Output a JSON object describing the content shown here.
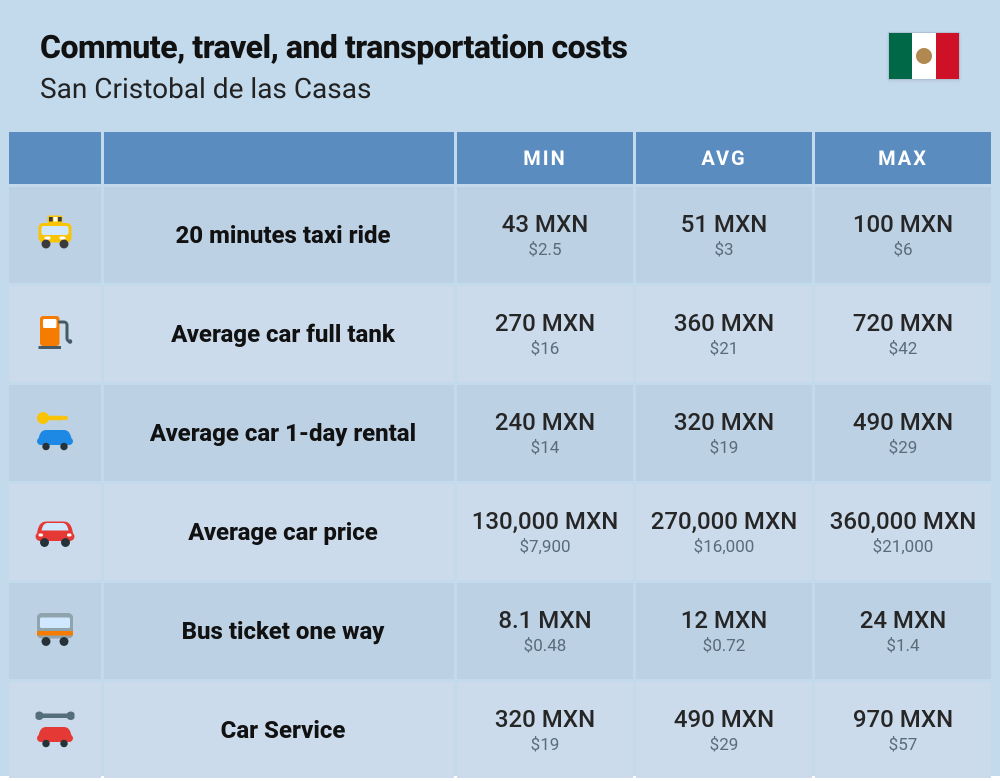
{
  "title": "Commute, travel, and transportation costs",
  "subtitle": "San Cristobal de las Casas",
  "flag": {
    "stripe_colors": [
      "#006847",
      "#ffffff",
      "#ce1126"
    ],
    "emblem_color": "#b08850"
  },
  "colors": {
    "card_bg": "#c3d9ec",
    "title": "#111111",
    "subtitle": "#222222",
    "header_bg": "#5a8cbf",
    "header_fg": "#ffffff",
    "row_odd_bg": "#bdd1e5",
    "row_even_bg": "#cbdbeb",
    "label": "#111111",
    "val_primary": "#262626",
    "val_secondary": "#5a6b7a"
  },
  "columns": {
    "min": "MIN",
    "avg": "AVG",
    "max": "MAX"
  },
  "rows": [
    {
      "icon": "taxi",
      "label": "20 minutes taxi ride",
      "min_mxn": "43 MXN",
      "min_usd": "$2.5",
      "avg_mxn": "51 MXN",
      "avg_usd": "$3",
      "max_mxn": "100 MXN",
      "max_usd": "$6"
    },
    {
      "icon": "fuel",
      "label": "Average car full tank",
      "min_mxn": "270 MXN",
      "min_usd": "$16",
      "avg_mxn": "360 MXN",
      "avg_usd": "$21",
      "max_mxn": "720 MXN",
      "max_usd": "$42"
    },
    {
      "icon": "rental",
      "label": "Average car 1-day rental",
      "min_mxn": "240 MXN",
      "min_usd": "$14",
      "avg_mxn": "320 MXN",
      "avg_usd": "$19",
      "max_mxn": "490 MXN",
      "max_usd": "$29"
    },
    {
      "icon": "car",
      "label": "Average car price",
      "min_mxn": "130,000 MXN",
      "min_usd": "$7,900",
      "avg_mxn": "270,000 MXN",
      "avg_usd": "$16,000",
      "max_mxn": "360,000 MXN",
      "max_usd": "$21,000"
    },
    {
      "icon": "bus",
      "label": "Bus ticket one way",
      "min_mxn": "8.1 MXN",
      "min_usd": "$0.48",
      "avg_mxn": "12 MXN",
      "avg_usd": "$0.72",
      "max_mxn": "24 MXN",
      "max_usd": "$1.4"
    },
    {
      "icon": "service",
      "label": "Car Service",
      "min_mxn": "320 MXN",
      "min_usd": "$19",
      "avg_mxn": "490 MXN",
      "avg_usd": "$29",
      "max_mxn": "970 MXN",
      "max_usd": "$57"
    }
  ],
  "icons": {
    "taxi": {
      "primary": "#f9c406",
      "accent": "#3b3b3b"
    },
    "fuel": {
      "primary": "#f57c00",
      "accent": "#455a64"
    },
    "rental": {
      "primary": "#1e88e5",
      "accent": "#f9c406"
    },
    "car": {
      "primary": "#e53935",
      "accent": "#263238"
    },
    "bus": {
      "primary": "#90a4ae",
      "accent": "#f57c00"
    },
    "service": {
      "primary": "#e53935",
      "accent": "#546e7a"
    }
  }
}
